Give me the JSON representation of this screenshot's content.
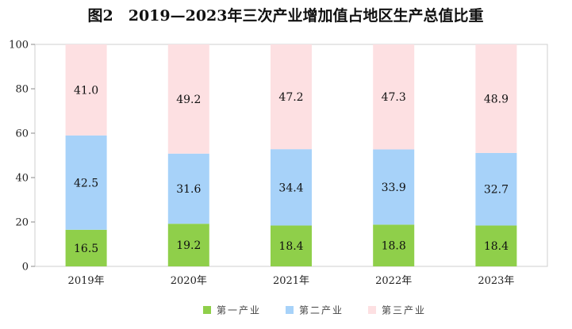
{
  "chart_data": {
    "type": "bar",
    "stacked": true,
    "title": "图2　2019—2023年三次产业增加值占地区生产总值比重",
    "categories": [
      "2019年",
      "2020年",
      "2021年",
      "2022年",
      "2023年"
    ],
    "ylim": [
      0,
      100
    ],
    "yticks": [
      0,
      20,
      40,
      60,
      80,
      100
    ],
    "grid": false,
    "legend_position": "bottom",
    "series": [
      {
        "name": "第一产业",
        "color": "#8fcf4a",
        "values": [
          16.5,
          19.2,
          18.4,
          18.8,
          18.4
        ]
      },
      {
        "name": "第二产业",
        "color": "#a7d2f9",
        "values": [
          42.5,
          31.6,
          34.4,
          33.9,
          32.7
        ]
      },
      {
        "name": "第三产业",
        "color": "#fde0e2",
        "values": [
          41.0,
          49.2,
          47.2,
          47.3,
          48.9
        ]
      }
    ]
  }
}
